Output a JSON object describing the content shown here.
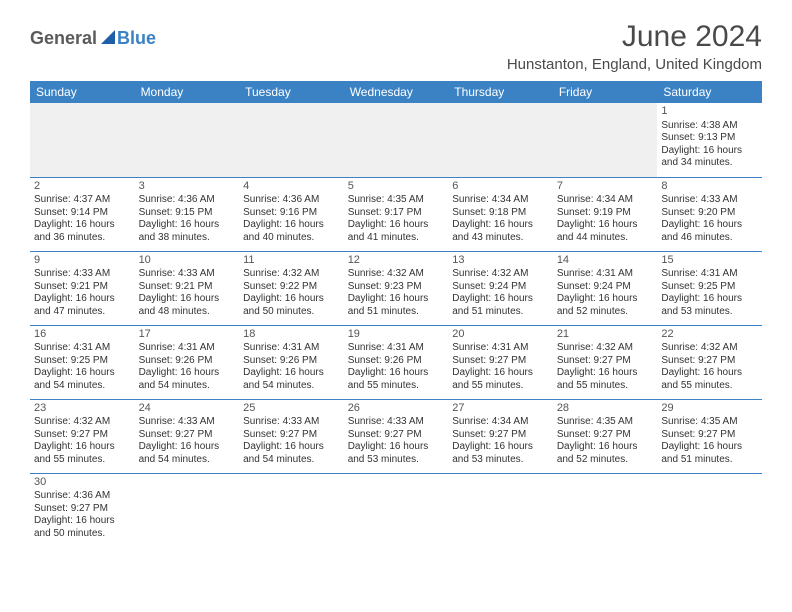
{
  "logo": {
    "part1": "General",
    "part2": "Blue"
  },
  "title": "June 2024",
  "location": "Hunstanton, England, United Kingdom",
  "colors": {
    "header_bg": "#3b82c4",
    "header_text": "#ffffff",
    "cell_border": "#3b82c4",
    "text": "#333333",
    "title_color": "#4a4a4a"
  },
  "weekdays": [
    "Sunday",
    "Monday",
    "Tuesday",
    "Wednesday",
    "Thursday",
    "Friday",
    "Saturday"
  ],
  "grid": [
    [
      {
        "blank": true
      },
      {
        "blank": true
      },
      {
        "blank": true
      },
      {
        "blank": true
      },
      {
        "blank": true
      },
      {
        "blank": true
      },
      {
        "day": "1",
        "sunrise": "Sunrise: 4:38 AM",
        "sunset": "Sunset: 9:13 PM",
        "daylight1": "Daylight: 16 hours",
        "daylight2": "and 34 minutes."
      }
    ],
    [
      {
        "day": "2",
        "sunrise": "Sunrise: 4:37 AM",
        "sunset": "Sunset: 9:14 PM",
        "daylight1": "Daylight: 16 hours",
        "daylight2": "and 36 minutes."
      },
      {
        "day": "3",
        "sunrise": "Sunrise: 4:36 AM",
        "sunset": "Sunset: 9:15 PM",
        "daylight1": "Daylight: 16 hours",
        "daylight2": "and 38 minutes."
      },
      {
        "day": "4",
        "sunrise": "Sunrise: 4:36 AM",
        "sunset": "Sunset: 9:16 PM",
        "daylight1": "Daylight: 16 hours",
        "daylight2": "and 40 minutes."
      },
      {
        "day": "5",
        "sunrise": "Sunrise: 4:35 AM",
        "sunset": "Sunset: 9:17 PM",
        "daylight1": "Daylight: 16 hours",
        "daylight2": "and 41 minutes."
      },
      {
        "day": "6",
        "sunrise": "Sunrise: 4:34 AM",
        "sunset": "Sunset: 9:18 PM",
        "daylight1": "Daylight: 16 hours",
        "daylight2": "and 43 minutes."
      },
      {
        "day": "7",
        "sunrise": "Sunrise: 4:34 AM",
        "sunset": "Sunset: 9:19 PM",
        "daylight1": "Daylight: 16 hours",
        "daylight2": "and 44 minutes."
      },
      {
        "day": "8",
        "sunrise": "Sunrise: 4:33 AM",
        "sunset": "Sunset: 9:20 PM",
        "daylight1": "Daylight: 16 hours",
        "daylight2": "and 46 minutes."
      }
    ],
    [
      {
        "day": "9",
        "sunrise": "Sunrise: 4:33 AM",
        "sunset": "Sunset: 9:21 PM",
        "daylight1": "Daylight: 16 hours",
        "daylight2": "and 47 minutes."
      },
      {
        "day": "10",
        "sunrise": "Sunrise: 4:33 AM",
        "sunset": "Sunset: 9:21 PM",
        "daylight1": "Daylight: 16 hours",
        "daylight2": "and 48 minutes."
      },
      {
        "day": "11",
        "sunrise": "Sunrise: 4:32 AM",
        "sunset": "Sunset: 9:22 PM",
        "daylight1": "Daylight: 16 hours",
        "daylight2": "and 50 minutes."
      },
      {
        "day": "12",
        "sunrise": "Sunrise: 4:32 AM",
        "sunset": "Sunset: 9:23 PM",
        "daylight1": "Daylight: 16 hours",
        "daylight2": "and 51 minutes."
      },
      {
        "day": "13",
        "sunrise": "Sunrise: 4:32 AM",
        "sunset": "Sunset: 9:24 PM",
        "daylight1": "Daylight: 16 hours",
        "daylight2": "and 51 minutes."
      },
      {
        "day": "14",
        "sunrise": "Sunrise: 4:31 AM",
        "sunset": "Sunset: 9:24 PM",
        "daylight1": "Daylight: 16 hours",
        "daylight2": "and 52 minutes."
      },
      {
        "day": "15",
        "sunrise": "Sunrise: 4:31 AM",
        "sunset": "Sunset: 9:25 PM",
        "daylight1": "Daylight: 16 hours",
        "daylight2": "and 53 minutes."
      }
    ],
    [
      {
        "day": "16",
        "sunrise": "Sunrise: 4:31 AM",
        "sunset": "Sunset: 9:25 PM",
        "daylight1": "Daylight: 16 hours",
        "daylight2": "and 54 minutes."
      },
      {
        "day": "17",
        "sunrise": "Sunrise: 4:31 AM",
        "sunset": "Sunset: 9:26 PM",
        "daylight1": "Daylight: 16 hours",
        "daylight2": "and 54 minutes."
      },
      {
        "day": "18",
        "sunrise": "Sunrise: 4:31 AM",
        "sunset": "Sunset: 9:26 PM",
        "daylight1": "Daylight: 16 hours",
        "daylight2": "and 54 minutes."
      },
      {
        "day": "19",
        "sunrise": "Sunrise: 4:31 AM",
        "sunset": "Sunset: 9:26 PM",
        "daylight1": "Daylight: 16 hours",
        "daylight2": "and 55 minutes."
      },
      {
        "day": "20",
        "sunrise": "Sunrise: 4:31 AM",
        "sunset": "Sunset: 9:27 PM",
        "daylight1": "Daylight: 16 hours",
        "daylight2": "and 55 minutes."
      },
      {
        "day": "21",
        "sunrise": "Sunrise: 4:32 AM",
        "sunset": "Sunset: 9:27 PM",
        "daylight1": "Daylight: 16 hours",
        "daylight2": "and 55 minutes."
      },
      {
        "day": "22",
        "sunrise": "Sunrise: 4:32 AM",
        "sunset": "Sunset: 9:27 PM",
        "daylight1": "Daylight: 16 hours",
        "daylight2": "and 55 minutes."
      }
    ],
    [
      {
        "day": "23",
        "sunrise": "Sunrise: 4:32 AM",
        "sunset": "Sunset: 9:27 PM",
        "daylight1": "Daylight: 16 hours",
        "daylight2": "and 55 minutes."
      },
      {
        "day": "24",
        "sunrise": "Sunrise: 4:33 AM",
        "sunset": "Sunset: 9:27 PM",
        "daylight1": "Daylight: 16 hours",
        "daylight2": "and 54 minutes."
      },
      {
        "day": "25",
        "sunrise": "Sunrise: 4:33 AM",
        "sunset": "Sunset: 9:27 PM",
        "daylight1": "Daylight: 16 hours",
        "daylight2": "and 54 minutes."
      },
      {
        "day": "26",
        "sunrise": "Sunrise: 4:33 AM",
        "sunset": "Sunset: 9:27 PM",
        "daylight1": "Daylight: 16 hours",
        "daylight2": "and 53 minutes."
      },
      {
        "day": "27",
        "sunrise": "Sunrise: 4:34 AM",
        "sunset": "Sunset: 9:27 PM",
        "daylight1": "Daylight: 16 hours",
        "daylight2": "and 53 minutes."
      },
      {
        "day": "28",
        "sunrise": "Sunrise: 4:35 AM",
        "sunset": "Sunset: 9:27 PM",
        "daylight1": "Daylight: 16 hours",
        "daylight2": "and 52 minutes."
      },
      {
        "day": "29",
        "sunrise": "Sunrise: 4:35 AM",
        "sunset": "Sunset: 9:27 PM",
        "daylight1": "Daylight: 16 hours",
        "daylight2": "and 51 minutes."
      }
    ],
    [
      {
        "day": "30",
        "sunrise": "Sunrise: 4:36 AM",
        "sunset": "Sunset: 9:27 PM",
        "daylight1": "Daylight: 16 hours",
        "daylight2": "and 50 minutes."
      },
      {
        "trail": true
      },
      {
        "trail": true
      },
      {
        "trail": true
      },
      {
        "trail": true
      },
      {
        "trail": true
      },
      {
        "trail": true
      }
    ]
  ]
}
